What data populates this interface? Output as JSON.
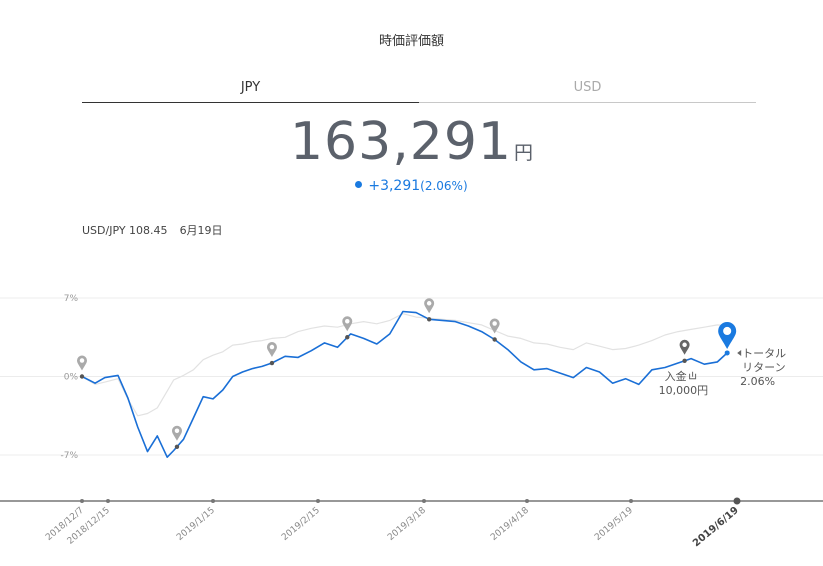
{
  "header": {
    "title": "時価評価額"
  },
  "tabs": [
    {
      "label": "JPY",
      "active": true
    },
    {
      "label": "USD",
      "active": false
    }
  ],
  "valuation": {
    "amount": "163,291",
    "unit": "円",
    "change": "+3,291",
    "change_pct": "(2.06%)"
  },
  "fx": {
    "label": "USD/JPY 108.45",
    "date": "6月19日"
  },
  "colors": {
    "series_line": "#1a6fd6",
    "benchmark_line": "#e2e2e2",
    "accent": "#1a7ae0",
    "marker": "#aaaaaa"
  },
  "chart_data": {
    "type": "line",
    "y_ticks": [
      "7%",
      "0%",
      "-7%"
    ],
    "ylim": [
      -11,
      9
    ],
    "x_ticks": [
      "2018/12/7",
      "2018/12/15",
      "2019/1/15",
      "2019/2/15",
      "2019/3/18",
      "2019/4/18",
      "2019/5/19",
      "2019/6/19"
    ],
    "x_ticks_bold": "2019/6/19",
    "xlim": [
      0,
      200
    ],
    "series": [
      {
        "x": [
          0,
          4,
          7,
          11,
          14,
          17,
          20,
          23,
          26,
          28,
          31,
          34,
          37,
          40,
          43,
          46,
          49,
          52,
          55,
          58,
          62,
          66,
          70,
          74,
          78,
          82,
          86,
          90,
          94,
          98,
          102,
          106,
          110,
          114,
          118,
          122,
          126,
          130,
          134,
          138,
          142,
          146,
          150,
          154,
          158,
          162,
          166,
          170,
          174,
          178,
          182,
          186,
          190,
          194,
          197
        ],
        "values": [
          0.0,
          -0.6,
          -0.1,
          0.1,
          -1.9,
          -4.5,
          -6.7,
          -5.3,
          -7.2,
          -6.6,
          -5.6,
          -3.7,
          -1.8,
          -2.0,
          -1.2,
          0.0,
          0.4,
          0.7,
          0.9,
          1.2,
          1.8,
          1.7,
          2.3,
          3.0,
          2.6,
          3.8,
          3.4,
          2.9,
          3.8,
          5.8,
          5.7,
          5.1,
          5.0,
          4.9,
          4.5,
          4.0,
          3.3,
          2.4,
          1.3,
          0.6,
          0.7,
          0.3,
          -0.1,
          0.8,
          0.4,
          -0.6,
          -0.2,
          -0.7,
          0.6,
          0.8,
          1.2,
          1.6,
          1.1,
          1.3,
          2.1
        ]
      },
      {
        "x": [
          0,
          4,
          7,
          11,
          14,
          17,
          20,
          23,
          26,
          28,
          31,
          34,
          37,
          40,
          43,
          46,
          49,
          52,
          55,
          58,
          62,
          66,
          70,
          74,
          78,
          82,
          86,
          90,
          94,
          98,
          102,
          106,
          110,
          114,
          118,
          122,
          126,
          130,
          134,
          138,
          142,
          146,
          150,
          154,
          158,
          162,
          166,
          170,
          174,
          178,
          182,
          186,
          190,
          194,
          197
        ],
        "values": [
          0.0,
          -0.7,
          -0.5,
          -0.2,
          -2.0,
          -3.5,
          -3.3,
          -2.8,
          -1.3,
          -0.3,
          0.1,
          0.6,
          1.5,
          1.9,
          2.2,
          2.8,
          2.9,
          3.1,
          3.2,
          3.4,
          3.5,
          4.0,
          4.3,
          4.5,
          4.4,
          4.7,
          4.9,
          4.7,
          5.0,
          5.6,
          5.3,
          5.2,
          5.1,
          5.0,
          4.8,
          4.6,
          4.1,
          3.6,
          3.4,
          3.0,
          2.9,
          2.6,
          2.4,
          3.0,
          2.7,
          2.4,
          2.5,
          2.8,
          3.2,
          3.7,
          4.0,
          4.2,
          4.4,
          4.6,
          4.5
        ]
      }
    ],
    "markers_x": [
      0,
      29,
      58,
      81,
      106,
      126
    ],
    "deposit": {
      "x": 184,
      "label": "入金",
      "amount": "10,000円"
    },
    "current": {
      "x": 197,
      "label_1": "トータル",
      "label_2": "リターン",
      "value": "2.06%"
    }
  }
}
